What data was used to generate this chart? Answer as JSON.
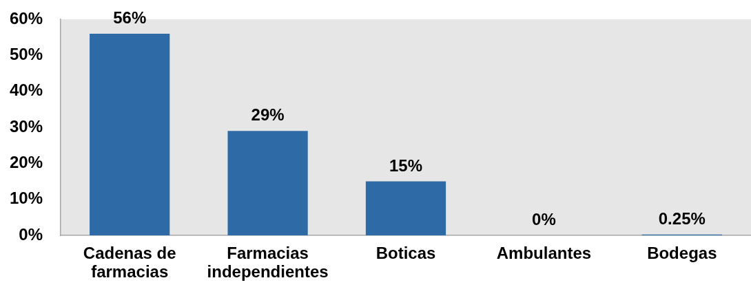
{
  "chart_data": {
    "type": "bar",
    "categories": [
      "Cadenas de farmacias",
      "Farmacias independientes",
      "Boticas",
      "Ambulantes",
      "Bodegas"
    ],
    "values": [
      56,
      29,
      15,
      0,
      0.25
    ],
    "color": "#2e6aa6",
    "value_labels": [
      "56%",
      "29%",
      "15%",
      "0%",
      "0.25%"
    ],
    "ylim": [
      0,
      60
    ],
    "yticks": [
      {
        "value": 0,
        "label": "0%"
      },
      {
        "value": 10,
        "label": "10%"
      },
      {
        "value": 20,
        "label": "20%"
      },
      {
        "value": 30,
        "label": "30%"
      },
      {
        "value": 40,
        "label": "40%"
      },
      {
        "value": 50,
        "label": "50%"
      },
      {
        "value": 60,
        "label": "60%"
      }
    ],
    "grid": false,
    "legend": false
  }
}
